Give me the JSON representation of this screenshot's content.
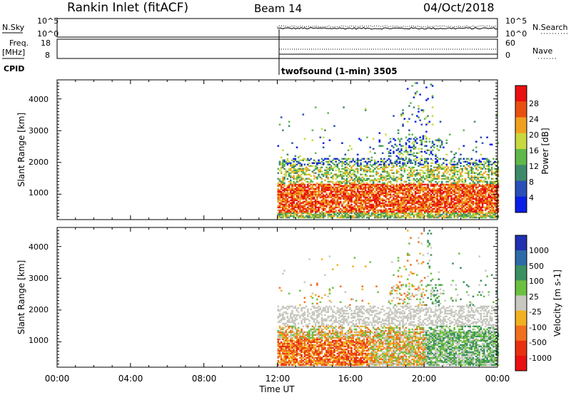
{
  "header": {
    "station": "Rankin Inlet (fitACF)",
    "beam": "Beam 14",
    "date": "04/Oct/2018"
  },
  "strip_top": {
    "left_label": "N.Sky",
    "right_label": "N.Search",
    "left_ticks": [
      "10^5",
      "10^0"
    ],
    "right_ticks": [
      "10^5",
      "10^0"
    ]
  },
  "strip_mid": {
    "left_label_1": "Freq.",
    "left_label_2": "[MHz]",
    "right_label": "Nave",
    "left_ticks": [
      "18",
      "8"
    ],
    "right_ticks": [
      "60",
      "0"
    ]
  },
  "cpid": {
    "label": "CPID",
    "program": "twofsound (1-min) 3505"
  },
  "chart_data": [
    {
      "type": "heatmap",
      "name": "power",
      "ylabel": "Slant Range [km]",
      "y_ticks": [
        "1000",
        "2000",
        "3000",
        "4000"
      ],
      "ylim": [
        200,
        4600
      ],
      "colorbar": {
        "label": "Power [dB]",
        "ticks": [
          "4",
          "8",
          "12",
          "16",
          "20",
          "24",
          "28"
        ],
        "colors": [
          "#0a1ee6",
          "#2a4fb8",
          "#3d8a6a",
          "#5fb84a",
          "#c8d840",
          "#f0a020",
          "#e85010",
          "#e81010"
        ]
      }
    },
    {
      "type": "heatmap",
      "name": "velocity",
      "ylabel": "Slant Range [km]",
      "y_ticks": [
        "1000",
        "2000",
        "3000",
        "4000"
      ],
      "ylim": [
        200,
        4600
      ],
      "colorbar": {
        "label": "Velocity [m s-1]",
        "ticks": [
          "1000",
          "500",
          "100",
          "25",
          "-25",
          "-100",
          "-500",
          "-1000"
        ],
        "colors": [
          "#2030b0",
          "#2f6aa8",
          "#3a9060",
          "#6cc040",
          "#c8c8c0",
          "#f0b020",
          "#f07020",
          "#e83010",
          "#e81010"
        ]
      }
    }
  ],
  "x_axis": {
    "label": "Time UT",
    "ticks": [
      "00:00",
      "04:00",
      "08:00",
      "12:00",
      "16:00",
      "20:00",
      "00:00"
    ]
  }
}
